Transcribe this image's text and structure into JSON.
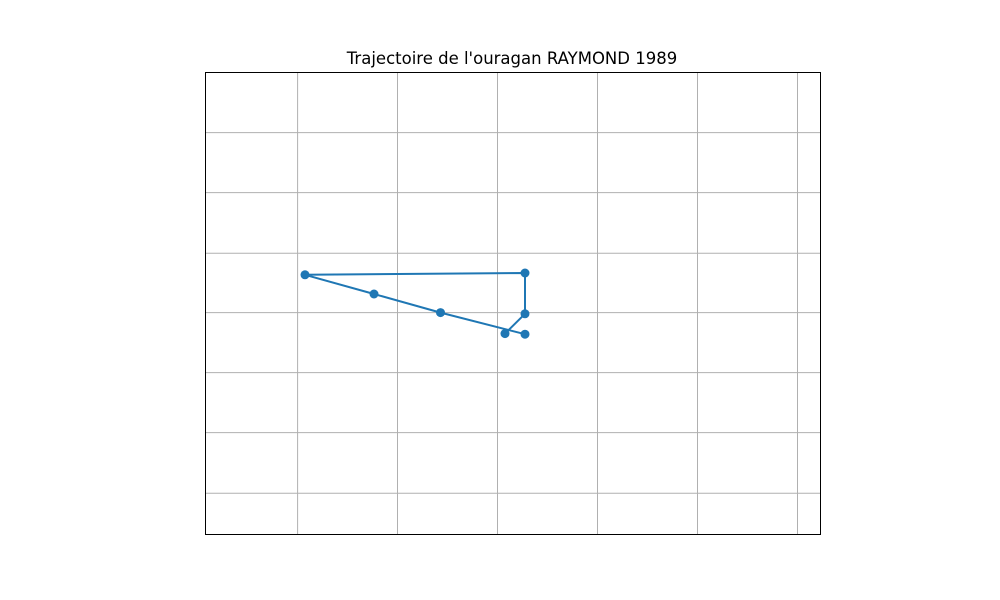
{
  "chart_data": {
    "type": "line",
    "title": "Trajectoire de l'ouragan RAYMOND 1989",
    "xlabel": "",
    "ylabel": "",
    "x_axis": {
      "min": -1.0,
      "max": 5.15,
      "grid_values": [
        -0.074,
        0.925,
        1.925,
        2.925,
        3.925,
        4.925
      ]
    },
    "y_axis": {
      "min": 0.0,
      "max": 7.7,
      "grid_values": [
        0.68,
        1.69,
        2.69,
        3.69,
        4.68,
        5.69,
        6.69
      ]
    },
    "grid": true,
    "tick_labels_visible": false,
    "series": [
      {
        "color": "#1f77b4",
        "marker": "circle",
        "points": [
          {
            "x": 2.2,
            "y": 3.33
          },
          {
            "x": 1.355,
            "y": 3.69
          },
          {
            "x": 0.69,
            "y": 4.0
          },
          {
            "x": 0.0,
            "y": 4.32
          },
          {
            "x": 2.2,
            "y": 4.35
          },
          {
            "x": 2.2,
            "y": 3.67
          },
          {
            "x": 2.0,
            "y": 3.34
          }
        ]
      }
    ]
  }
}
